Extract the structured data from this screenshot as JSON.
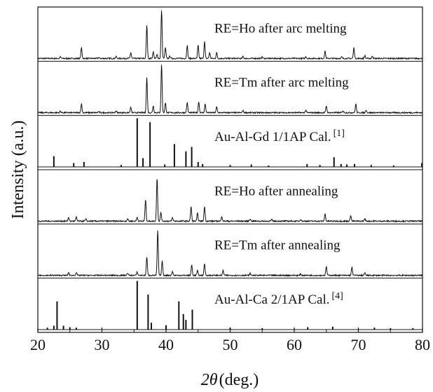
{
  "chart_data": {
    "type": "line",
    "xlabel_symbol": "2θ",
    "xlabel_unit": "(deg.)",
    "ylabel": "Intensity (a.u.)",
    "xlim": [
      20,
      80
    ],
    "x_ticks": [
      "20",
      "30",
      "40",
      "50",
      "60",
      "70",
      "80"
    ],
    "grid": false,
    "legend": "none",
    "panels": [
      {
        "name": "RE=Ho after arc melting",
        "name_sup": "",
        "style": "continuous",
        "peaks": [
          [
            23.5,
            0.03
          ],
          [
            26.8,
            0.22
          ],
          [
            29.5,
            0.02
          ],
          [
            32.2,
            0.04
          ],
          [
            34.5,
            0.12
          ],
          [
            37.0,
            0.68
          ],
          [
            38.0,
            0.14
          ],
          [
            38.6,
            0.08
          ],
          [
            39.3,
            1.0
          ],
          [
            39.9,
            0.22
          ],
          [
            40.6,
            0.05
          ],
          [
            43.3,
            0.27
          ],
          [
            45.0,
            0.27
          ],
          [
            46.0,
            0.35
          ],
          [
            46.8,
            0.12
          ],
          [
            47.9,
            0.12
          ],
          [
            52.0,
            0.04
          ],
          [
            55.0,
            0.03
          ],
          [
            61.8,
            0.04
          ],
          [
            64.8,
            0.15
          ],
          [
            67.4,
            0.03
          ],
          [
            69.3,
            0.22
          ],
          [
            71.0,
            0.06
          ],
          [
            72.2,
            0.05
          ]
        ]
      },
      {
        "name": "RE=Tm after arc melting",
        "name_sup": "",
        "style": "continuous",
        "peaks": [
          [
            23.5,
            0.03
          ],
          [
            26.8,
            0.18
          ],
          [
            29.5,
            0.02
          ],
          [
            32.2,
            0.04
          ],
          [
            34.5,
            0.11
          ],
          [
            37.0,
            0.72
          ],
          [
            38.0,
            0.14
          ],
          [
            39.3,
            1.0
          ],
          [
            39.9,
            0.2
          ],
          [
            43.3,
            0.21
          ],
          [
            45.1,
            0.23
          ],
          [
            46.1,
            0.18
          ],
          [
            47.9,
            0.12
          ],
          [
            52.0,
            0.05
          ],
          [
            61.8,
            0.05
          ],
          [
            65.0,
            0.14
          ],
          [
            67.6,
            0.04
          ],
          [
            69.6,
            0.18
          ],
          [
            71.2,
            0.06
          ]
        ]
      },
      {
        "name": "Au-Al-Gd 1/1AP Cal.",
        "name_sup": "[1]",
        "style": "sticks",
        "peaks": [
          [
            22.5,
            0.22
          ],
          [
            25.6,
            0.08
          ],
          [
            27.2,
            0.1
          ],
          [
            33.0,
            0.04
          ],
          [
            35.5,
            1.0
          ],
          [
            36.4,
            0.18
          ],
          [
            37.5,
            0.92
          ],
          [
            39.8,
            0.05
          ],
          [
            41.3,
            0.47
          ],
          [
            43.1,
            0.32
          ],
          [
            44.0,
            0.41
          ],
          [
            45.0,
            0.1
          ],
          [
            45.7,
            0.06
          ],
          [
            50.0,
            0.04
          ],
          [
            53.3,
            0.05
          ],
          [
            56.0,
            0.03
          ],
          [
            62.0,
            0.06
          ],
          [
            64.0,
            0.04
          ],
          [
            66.2,
            0.2
          ],
          [
            67.3,
            0.06
          ],
          [
            68.2,
            0.05
          ],
          [
            69.4,
            0.06
          ],
          [
            72.0,
            0.04
          ],
          [
            75.5,
            0.03
          ],
          [
            79.9,
            0.08
          ]
        ]
      },
      {
        "name": "RE=Ho after annealing",
        "name_sup": "",
        "style": "continuous",
        "peaks": [
          [
            24.8,
            0.08
          ],
          [
            26.0,
            0.08
          ],
          [
            27.5,
            0.04
          ],
          [
            34.0,
            0.05
          ],
          [
            35.5,
            0.08
          ],
          [
            36.8,
            0.45
          ],
          [
            38.6,
            0.9
          ],
          [
            39.2,
            0.18
          ],
          [
            41.0,
            0.07
          ],
          [
            43.9,
            0.3
          ],
          [
            44.9,
            0.16
          ],
          [
            46.0,
            0.3
          ],
          [
            48.7,
            0.1
          ],
          [
            53.1,
            0.05
          ],
          [
            56.5,
            0.03
          ],
          [
            61.0,
            0.04
          ],
          [
            64.8,
            0.15
          ],
          [
            68.8,
            0.12
          ],
          [
            71.0,
            0.05
          ]
        ]
      },
      {
        "name": "RE=Tm after annealing",
        "name_sup": "",
        "style": "continuous",
        "peaks": [
          [
            24.8,
            0.06
          ],
          [
            26.0,
            0.06
          ],
          [
            34.0,
            0.05
          ],
          [
            35.5,
            0.07
          ],
          [
            37.0,
            0.38
          ],
          [
            38.7,
            0.92
          ],
          [
            39.4,
            0.3
          ],
          [
            41.0,
            0.08
          ],
          [
            44.0,
            0.22
          ],
          [
            44.9,
            0.1
          ],
          [
            46.0,
            0.24
          ],
          [
            48.9,
            0.1
          ],
          [
            53.1,
            0.04
          ],
          [
            61.0,
            0.03
          ],
          [
            65.0,
            0.18
          ],
          [
            69.0,
            0.17
          ],
          [
            71.0,
            0.05
          ]
        ]
      },
      {
        "name": "Au-Al-Ca 2/1AP Cal.",
        "name_sup": "[4]",
        "style": "sticks",
        "peaks": [
          [
            21.5,
            0.04
          ],
          [
            22.5,
            0.08
          ],
          [
            23.0,
            0.58
          ],
          [
            24.0,
            0.08
          ],
          [
            25.0,
            0.05
          ],
          [
            26.0,
            0.04
          ],
          [
            35.5,
            1.0
          ],
          [
            37.2,
            0.72
          ],
          [
            37.7,
            0.14
          ],
          [
            40.0,
            0.09
          ],
          [
            42.0,
            0.58
          ],
          [
            42.7,
            0.32
          ],
          [
            43.1,
            0.2
          ],
          [
            44.1,
            0.41
          ],
          [
            50.0,
            0.04
          ],
          [
            55.0,
            0.03
          ],
          [
            62.1,
            0.05
          ],
          [
            66.0,
            0.06
          ],
          [
            72.5,
            0.04
          ],
          [
            75.0,
            0.03
          ],
          [
            78.5,
            0.03
          ]
        ]
      }
    ]
  }
}
